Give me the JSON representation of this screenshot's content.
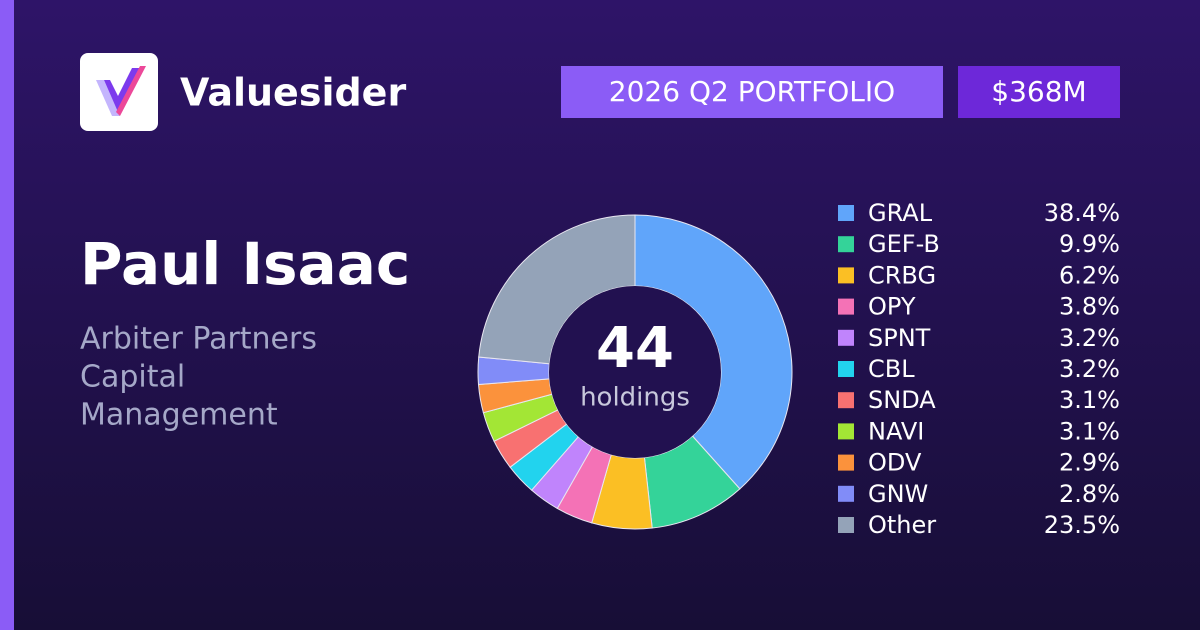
{
  "brand": {
    "name": "Valuesider"
  },
  "badges": {
    "period": "2026 Q2 PORTFOLIO",
    "value": "$368M"
  },
  "manager": {
    "name": "Paul Isaac",
    "firm_lines": [
      "Arbiter Partners",
      "Capital",
      "Management"
    ]
  },
  "chart_data": {
    "type": "pie",
    "center_value": 44,
    "center_label": "holdings",
    "categories": [
      "GRAL",
      "GEF-B",
      "CRBG",
      "OPY",
      "SPNT",
      "CBL",
      "SNDA",
      "NAVI",
      "ODV",
      "GNW",
      "Other"
    ],
    "values": [
      38.4,
      9.9,
      6.2,
      3.8,
      3.2,
      3.2,
      3.1,
      3.1,
      2.9,
      2.8,
      23.5
    ],
    "value_labels": [
      "38.4%",
      "9.9%",
      "6.2%",
      "3.8%",
      "3.2%",
      "3.2%",
      "3.1%",
      "3.1%",
      "2.9%",
      "2.8%",
      "23.5%"
    ],
    "colors": [
      "#60a5fa",
      "#34d399",
      "#fbbf24",
      "#f472b6",
      "#c084fc",
      "#22d3ee",
      "#f87171",
      "#a3e635",
      "#fb923c",
      "#818cf8",
      "#94a3b8"
    ]
  }
}
